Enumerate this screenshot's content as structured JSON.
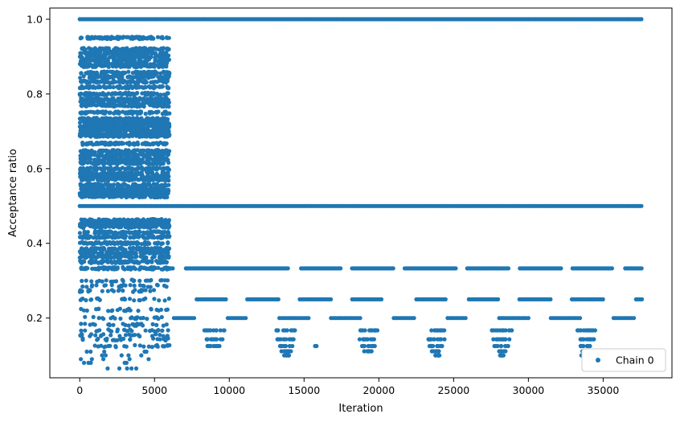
{
  "chart_data": {
    "type": "scatter",
    "xlabel": "Iteration",
    "ylabel": "Acceptance ratio",
    "xlim": [
      -2000,
      39600
    ],
    "ylim": [
      0.04,
      1.03
    ],
    "x_ticks": [
      0,
      5000,
      10000,
      15000,
      20000,
      25000,
      30000,
      35000
    ],
    "x_tick_labels": [
      "0",
      "5000",
      "10000",
      "15000",
      "20000",
      "25000",
      "30000",
      "35000"
    ],
    "y_ticks": [
      0.2,
      0.4,
      0.6,
      0.8,
      1.0
    ],
    "y_tick_labels": [
      "0.2",
      "0.4",
      "0.6",
      "0.8",
      "1.0"
    ],
    "grid": false,
    "legend_position": "bottom-right",
    "series": [
      {
        "name": "Chain 0",
        "color": "#1f77b4",
        "marker": "circle",
        "description_bands": [
          {
            "y": 1.0,
            "x_range": [
              0,
              37600
            ],
            "density": "continuous"
          },
          {
            "y": 0.5,
            "x_range": [
              0,
              37600
            ],
            "density": "continuous"
          },
          {
            "y": 0.333,
            "x_range": [
              0,
              37600
            ],
            "density": "high"
          },
          {
            "y": 0.25,
            "x_range": [
              0,
              37600
            ],
            "density": "medium"
          },
          {
            "y": 0.2,
            "x_range": [
              0,
              37600
            ],
            "density": "medium"
          },
          {
            "y": 0.167,
            "x_range": [
              0,
              37600
            ],
            "density": "clustered"
          },
          {
            "y": 0.143,
            "x_range": [
              0,
              37600
            ],
            "density": "clustered"
          },
          {
            "y": 0.125,
            "x_range": [
              0,
              37600
            ],
            "density": "sparse"
          },
          {
            "y": 0.111,
            "x_range": [
              0,
              37600
            ],
            "density": "sparse"
          },
          {
            "y": 0.1,
            "x_range": [
              0,
              37600
            ],
            "density": "sparse"
          }
        ],
        "early_phase": {
          "x_range": [
            0,
            6000
          ],
          "y_range": [
            0.06,
            0.95
          ],
          "density": "dense"
        },
        "clusters_low": [
          {
            "x_center": 9000,
            "y_min": 0.12
          },
          {
            "x_center": 13800,
            "y_min": 0.1
          },
          {
            "x_center": 19300,
            "y_min": 0.11
          },
          {
            "x_center": 23800,
            "y_min": 0.09
          },
          {
            "x_center": 28200,
            "y_min": 0.085
          },
          {
            "x_center": 33800,
            "y_min": 0.1
          }
        ]
      }
    ]
  }
}
